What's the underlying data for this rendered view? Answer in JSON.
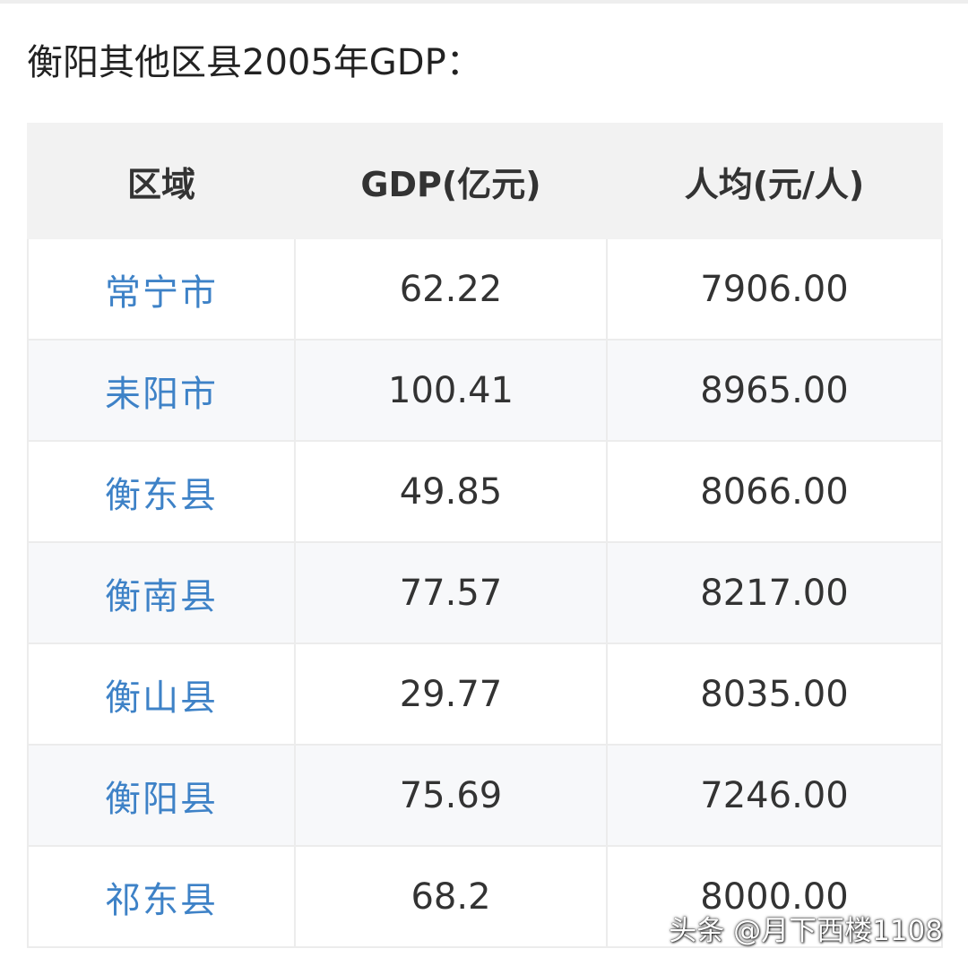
{
  "page": {
    "title": "衡阳其他区县2005年GDP："
  },
  "table": {
    "headers": {
      "region": "区域",
      "gdp": "GDP(亿元)",
      "per_capita": "人均(元/人)"
    },
    "rows": [
      {
        "region": "常宁市",
        "gdp": "62.22",
        "per_capita": "7906.00"
      },
      {
        "region": "耒阳市",
        "gdp": "100.41",
        "per_capita": "8965.00"
      },
      {
        "region": "衡东县",
        "gdp": "49.85",
        "per_capita": "8066.00"
      },
      {
        "region": "衡南县",
        "gdp": "77.57",
        "per_capita": "8217.00"
      },
      {
        "region": "衡山县",
        "gdp": "29.77",
        "per_capita": "8035.00"
      },
      {
        "region": "衡阳县",
        "gdp": "75.69",
        "per_capita": "7246.00"
      },
      {
        "region": "祁东县",
        "gdp": "68.2",
        "per_capita": "8000.00"
      }
    ]
  },
  "watermark": {
    "text": "头条 @月下西楼1108"
  },
  "colors": {
    "link": "#3e82c7",
    "header_bg": "#f2f2f2",
    "stripe_bg": "#f7f8fa"
  }
}
